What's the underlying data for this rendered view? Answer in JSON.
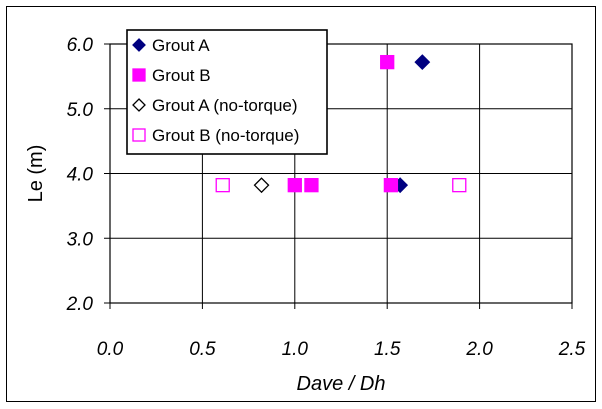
{
  "chart_data": {
    "type": "scatter",
    "xlabel": "Dave / Dh",
    "ylabel": "Le (m)",
    "xlim": [
      0.0,
      2.5
    ],
    "ylim": [
      2.0,
      6.0
    ],
    "x_ticks": [
      "0.0",
      "0.5",
      "1.0",
      "1.5",
      "2.0",
      "2.5"
    ],
    "y_ticks": [
      "2.0",
      "3.0",
      "4.0",
      "5.0",
      "6.0"
    ],
    "grid": true,
    "legend_position": "top-left",
    "series": [
      {
        "name": "Grout A",
        "marker": "filled-diamond",
        "color": "#000080",
        "points": [
          {
            "x": 1.69,
            "y": 5.72
          },
          {
            "x": 1.57,
            "y": 3.82
          }
        ]
      },
      {
        "name": "Grout B",
        "marker": "filled-square",
        "color": "#ff00ff",
        "points": [
          {
            "x": 1.5,
            "y": 5.72
          },
          {
            "x": 1.0,
            "y": 3.82
          },
          {
            "x": 1.09,
            "y": 3.82
          },
          {
            "x": 1.52,
            "y": 3.82
          }
        ]
      },
      {
        "name": "Grout A (no-torque)",
        "marker": "open-diamond",
        "color": "#000000",
        "points": [
          {
            "x": 0.82,
            "y": 3.82
          }
        ]
      },
      {
        "name": "Grout B (no-torque)",
        "marker": "open-square",
        "color": "#ff00ff",
        "points": [
          {
            "x": 0.61,
            "y": 3.82
          },
          {
            "x": 1.89,
            "y": 3.82
          }
        ]
      }
    ]
  }
}
